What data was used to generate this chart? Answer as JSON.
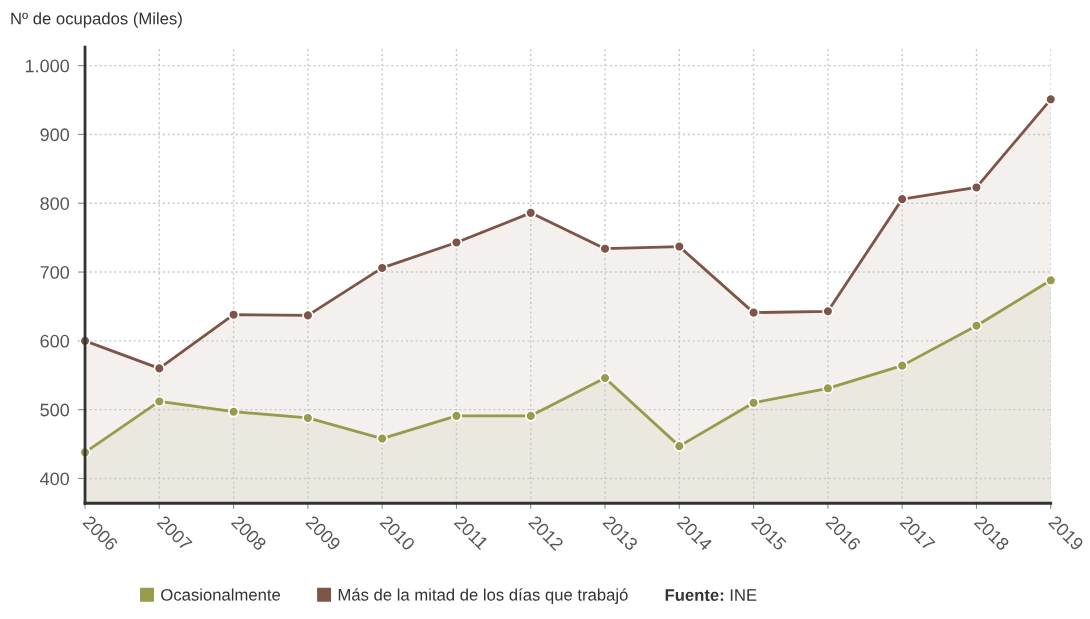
{
  "chart_data": {
    "type": "area",
    "ylabel": "Nº de ocupados (Miles)",
    "x": [
      2006,
      2007,
      2008,
      2009,
      2010,
      2011,
      2012,
      2013,
      2014,
      2015,
      2016,
      2017,
      2018,
      2019
    ],
    "xlim": [
      2006,
      2019
    ],
    "xticks": [
      2006,
      2007,
      2008,
      2009,
      2010,
      2011,
      2012,
      2013,
      2014,
      2015,
      2016,
      2017,
      2018,
      2019
    ],
    "ylim": [
      364,
      1027
    ],
    "yticks": [
      400,
      500,
      600,
      700,
      800,
      900,
      {
        "value": 1000,
        "label": "1.000"
      }
    ],
    "series": [
      {
        "name": "Ocasionalmente",
        "color": "#989a4c",
        "values": [
          438,
          512,
          497,
          488,
          458,
          491,
          491,
          546,
          447,
          510,
          531,
          564,
          622,
          688
        ]
      },
      {
        "name": "Más de la mitad de los días que trabajó",
        "color": "#7d5447",
        "values": [
          600,
          560,
          638,
          637,
          706,
          743,
          786,
          734,
          737,
          641,
          643,
          806,
          823,
          951
        ]
      }
    ],
    "grid": true,
    "legend": "bottom",
    "marker": "circle",
    "line_style": "solid",
    "annotations": [
      "Fuente: INE"
    ]
  }
}
